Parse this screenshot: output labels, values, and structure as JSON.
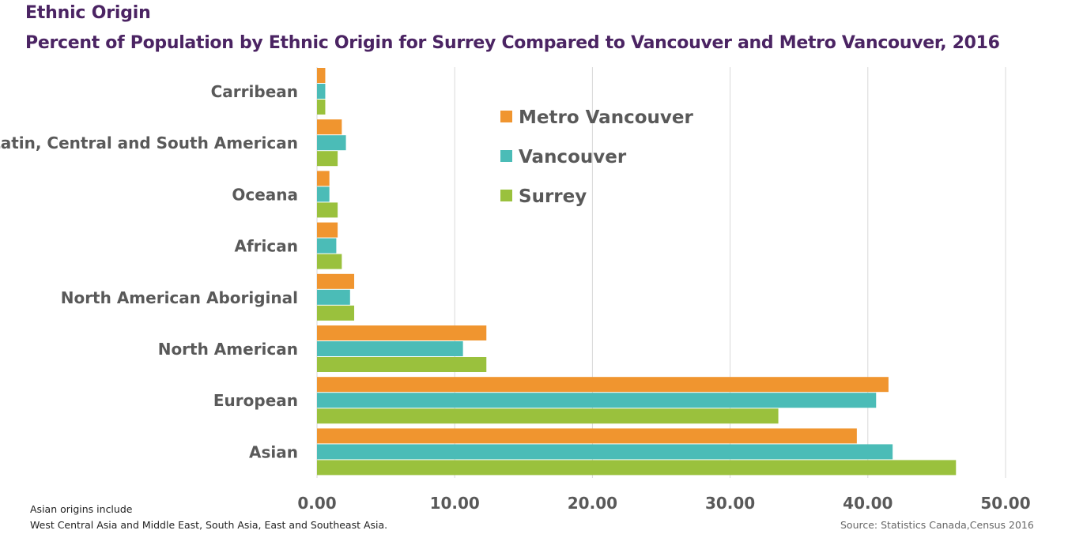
{
  "chart_data": {
    "type": "bar",
    "orientation": "horizontal",
    "title": "Ethnic Origin",
    "subtitle": "Percent of Population by Ethnic Origin for Surrey Compared to Vancouver and Metro Vancouver, 2016",
    "categories": [
      "Carribean",
      "Latin, Central and South American",
      "Oceana",
      "African",
      "North American Aboriginal",
      "North American",
      "European",
      "Asian"
    ],
    "series": [
      {
        "name": "Metro Vancouver",
        "color": "#f0952f",
        "values": [
          0.6,
          1.8,
          0.9,
          1.5,
          2.7,
          12.3,
          41.5,
          39.2
        ]
      },
      {
        "name": "Vancouver",
        "color": "#4bbcb7",
        "values": [
          0.6,
          2.1,
          0.9,
          1.4,
          2.4,
          10.6,
          40.6,
          41.8
        ]
      },
      {
        "name": "Surrey",
        "color": "#9ac13d",
        "values": [
          0.6,
          1.5,
          1.5,
          1.8,
          2.7,
          12.3,
          33.5,
          46.4
        ]
      }
    ],
    "x_ticks": [
      "0.00",
      "10.00",
      "20.00",
      "30.00",
      "40.00",
      "50.00"
    ],
    "xlim": [
      0,
      50
    ],
    "grid": "vertical",
    "legend_position": "top-center",
    "xlabel": "",
    "ylabel": ""
  },
  "footnote": {
    "line1": "Asian origins include",
    "line2": "West Central Asia and Middle East, South Asia, East and Southeast Asia."
  },
  "source": "Source: Statistics Canada,Census 2016"
}
